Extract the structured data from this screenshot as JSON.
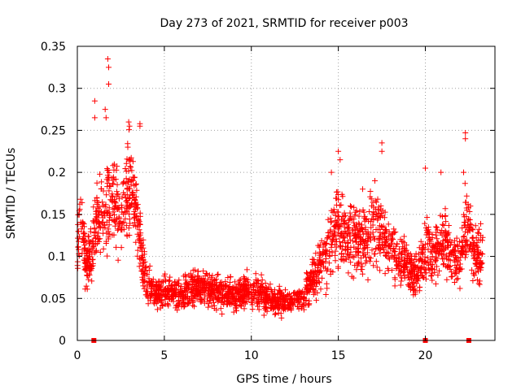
{
  "chart_data": {
    "type": "scatter",
    "title": "Day 273 of 2021, SRMTID for receiver p003",
    "xlabel": "GPS time / hours",
    "ylabel": "SRMTID / TECUs",
    "xlim": [
      0,
      24
    ],
    "ylim": [
      0,
      0.35
    ],
    "xticks": [
      0,
      5,
      10,
      15,
      20
    ],
    "yticks": [
      0,
      0.05,
      0.1,
      0.15,
      0.2,
      0.25,
      0.3,
      0.35
    ],
    "xtick_labels": [
      "0",
      "5",
      "10",
      "15",
      "20"
    ],
    "ytick_labels": [
      "0",
      "0.05",
      "0.1",
      "0.15",
      "0.2",
      "0.25",
      "0.3",
      "0.35"
    ],
    "grid": true,
    "marker": "+",
    "color": "#ff0000",
    "series": [
      {
        "name": "SRMTID",
        "profile": [
          [
            0.0,
            0.11
          ],
          [
            0.2,
            0.14
          ],
          [
            0.5,
            0.09
          ],
          [
            0.8,
            0.1
          ],
          [
            1.0,
            0.13
          ],
          [
            1.3,
            0.15
          ],
          [
            1.6,
            0.16
          ],
          [
            1.9,
            0.17
          ],
          [
            2.2,
            0.16
          ],
          [
            2.5,
            0.15
          ],
          [
            2.8,
            0.17
          ],
          [
            3.1,
            0.18
          ],
          [
            3.4,
            0.15
          ],
          [
            3.7,
            0.1
          ],
          [
            4.0,
            0.07
          ],
          [
            4.5,
            0.055
          ],
          [
            5.0,
            0.06
          ],
          [
            6.0,
            0.055
          ],
          [
            7.0,
            0.065
          ],
          [
            8.0,
            0.06
          ],
          [
            9.0,
            0.055
          ],
          [
            10.0,
            0.06
          ],
          [
            11.0,
            0.05
          ],
          [
            12.0,
            0.045
          ],
          [
            13.0,
            0.05
          ],
          [
            13.5,
            0.075
          ],
          [
            14.0,
            0.09
          ],
          [
            14.5,
            0.12
          ],
          [
            15.0,
            0.135
          ],
          [
            15.5,
            0.125
          ],
          [
            16.0,
            0.12
          ],
          [
            16.5,
            0.115
          ],
          [
            17.0,
            0.14
          ],
          [
            17.5,
            0.125
          ],
          [
            18.0,
            0.11
          ],
          [
            18.5,
            0.095
          ],
          [
            19.0,
            0.085
          ],
          [
            19.5,
            0.075
          ],
          [
            20.0,
            0.11
          ],
          [
            20.5,
            0.1
          ],
          [
            21.0,
            0.125
          ],
          [
            21.5,
            0.1
          ],
          [
            22.0,
            0.095
          ],
          [
            22.3,
            0.14
          ],
          [
            22.7,
            0.115
          ],
          [
            23.0,
            0.1
          ],
          [
            23.3,
            0.1
          ]
        ],
        "peaks": [
          [
            1.0,
            0.285
          ],
          [
            1.0,
            0.265
          ],
          [
            1.75,
            0.335
          ],
          [
            1.8,
            0.325
          ],
          [
            1.8,
            0.305
          ],
          [
            1.6,
            0.275
          ],
          [
            1.65,
            0.265
          ],
          [
            2.95,
            0.26
          ],
          [
            3.0,
            0.255
          ],
          [
            3.6,
            0.258
          ],
          [
            3.6,
            0.255
          ],
          [
            2.9,
            0.23
          ],
          [
            2.95,
            0.215
          ],
          [
            15.0,
            0.225
          ],
          [
            15.1,
            0.215
          ],
          [
            17.5,
            0.235
          ],
          [
            17.5,
            0.225
          ],
          [
            20.0,
            0.205
          ],
          [
            20.9,
            0.2
          ],
          [
            22.3,
            0.247
          ],
          [
            22.3,
            0.24
          ],
          [
            22.2,
            0.2
          ],
          [
            14.6,
            0.2
          ],
          [
            16.4,
            0.18
          ],
          [
            17.1,
            0.19
          ]
        ]
      }
    ],
    "outliers_at_zero": [
      [
        0.95,
        0.0
      ],
      [
        20.0,
        0.0
      ],
      [
        22.5,
        0.0
      ]
    ]
  }
}
